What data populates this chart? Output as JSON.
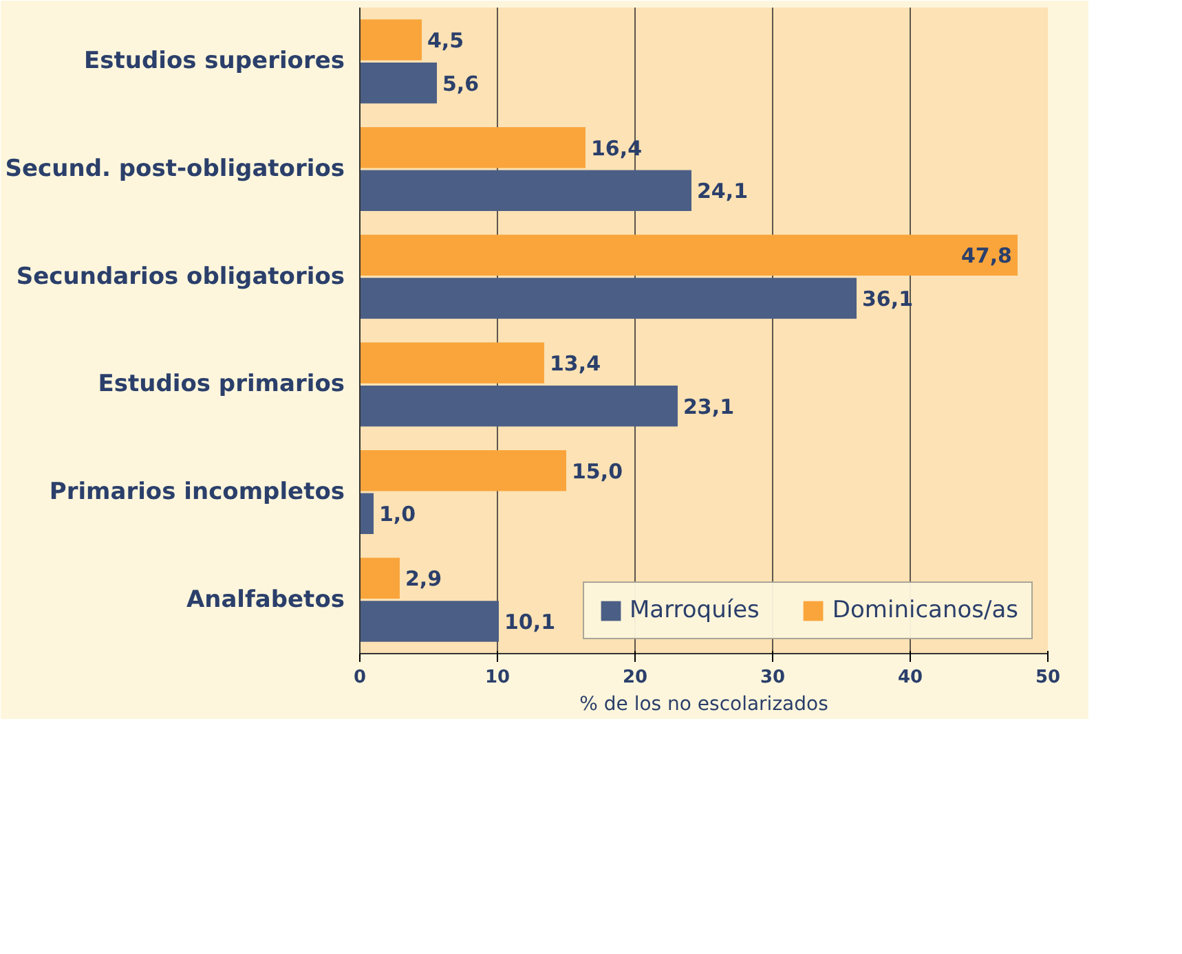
{
  "chart_data": {
    "type": "bar",
    "orientation": "horizontal",
    "xlabel": "% de los no escolarizados",
    "categories": [
      "Estudios superiores",
      "Secund. post-obligatorios",
      "Secundarios obligatorios",
      "Estudios primarios",
      "Primarios incompletos",
      "Analfabetos"
    ],
    "series": [
      {
        "name": "Dominicanos/as",
        "color": "#f9a53c",
        "values": [
          4.5,
          16.4,
          47.8,
          13.4,
          15.0,
          2.9
        ],
        "value_labels": [
          "4,5",
          "16,4",
          "47,8",
          "13,4",
          "15,0",
          "2,9"
        ]
      },
      {
        "name": "Marroquíes",
        "color": "#4b5e85",
        "values": [
          5.6,
          24.1,
          36.1,
          23.1,
          1.0,
          10.1
        ],
        "value_labels": [
          "5,6",
          "24,1",
          "36,1",
          "23,1",
          "1,0",
          "10,1"
        ]
      }
    ],
    "xlim": [
      0,
      50
    ],
    "xticks": [
      0,
      10,
      20,
      30,
      40,
      50
    ],
    "grid": "x",
    "legend": "bottom right"
  }
}
